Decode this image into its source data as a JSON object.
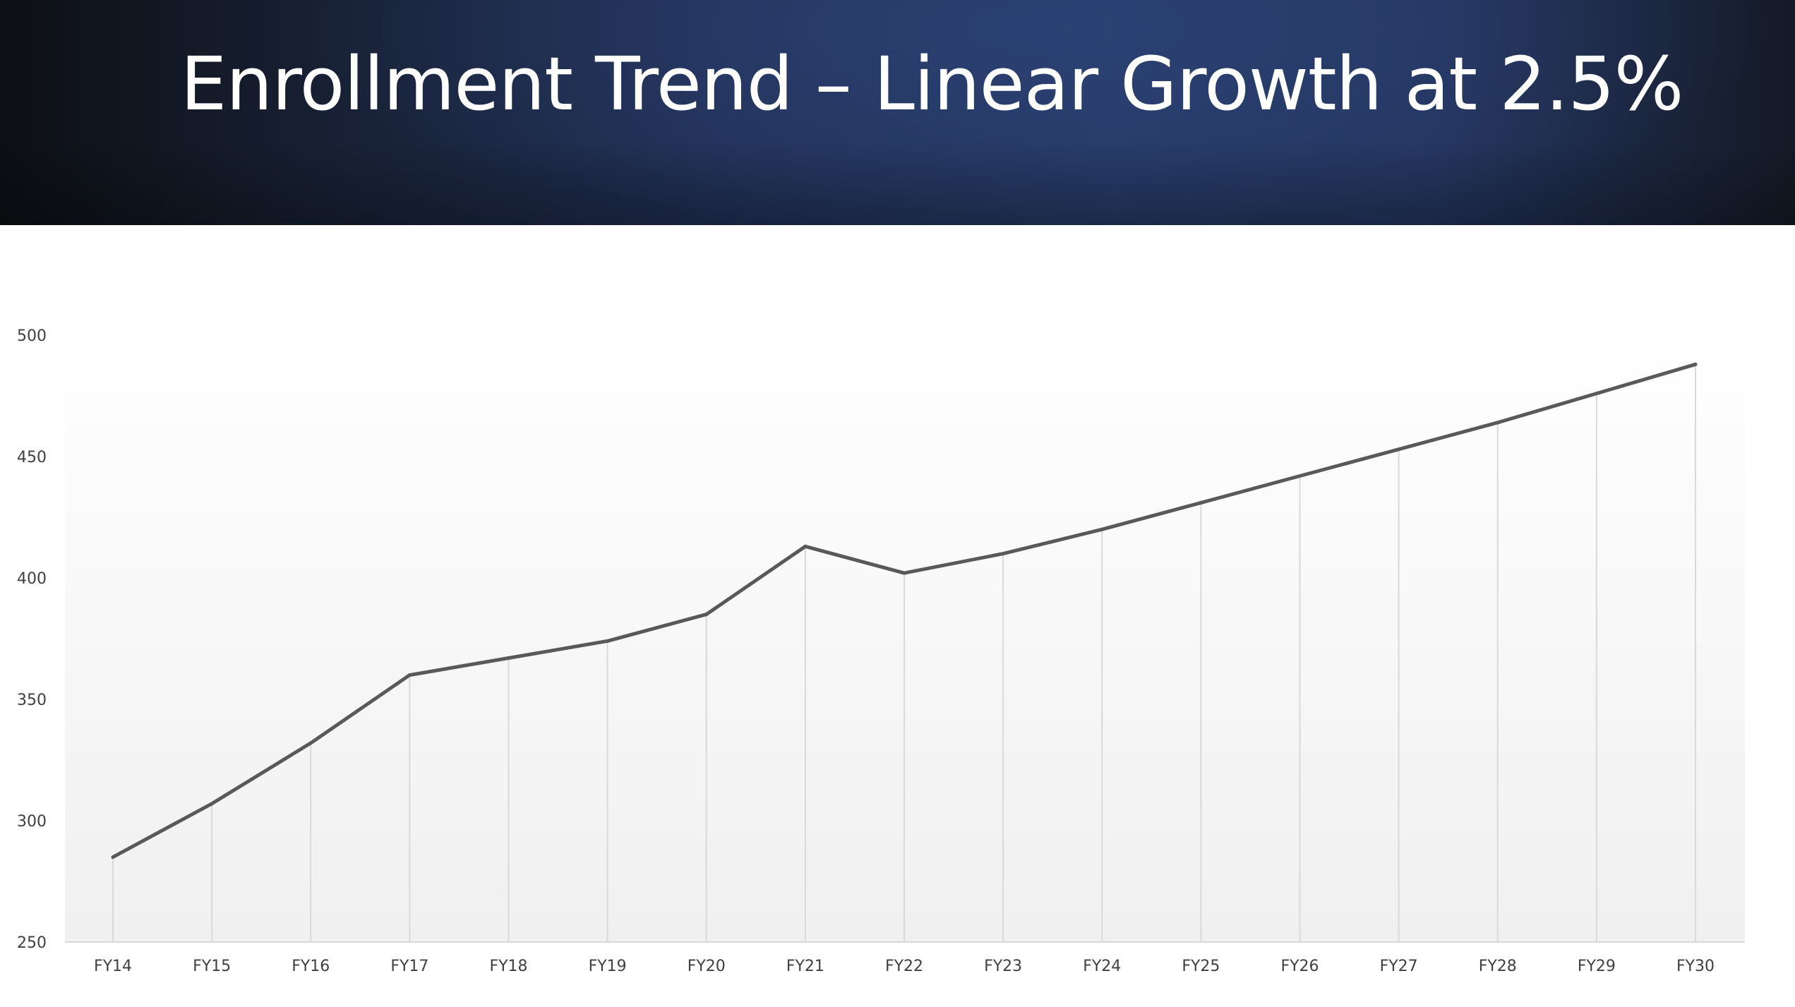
{
  "slide": {
    "title": "Enrollment Trend – Linear Growth at 2.5%"
  },
  "colors": {
    "banner_dark": "#0d0f14",
    "banner_blue": "#263a66",
    "line": "#595959",
    "grid": "#d9d9d9",
    "plot_fill_top": "#ffffff",
    "plot_fill_bottom": "#f0f0f0"
  },
  "chart_data": {
    "type": "line",
    "title": "",
    "xlabel": "",
    "ylabel": "",
    "categories": [
      "FY14",
      "FY15",
      "FY16",
      "FY17",
      "FY18",
      "FY19",
      "FY20",
      "FY21",
      "FY22",
      "FY23",
      "FY24",
      "FY25",
      "FY26",
      "FY27",
      "FY28",
      "FY29",
      "FY30"
    ],
    "series": [
      {
        "values": [
          285,
          307,
          332,
          360,
          367,
          374,
          385,
          413,
          402,
          410,
          420,
          431,
          442,
          453,
          464,
          476,
          488
        ]
      }
    ],
    "ylim": [
      250,
      500
    ],
    "yticks": [
      250,
      300,
      350,
      400,
      450,
      500
    ],
    "grid": "vertical drop lines",
    "legend": "none"
  }
}
